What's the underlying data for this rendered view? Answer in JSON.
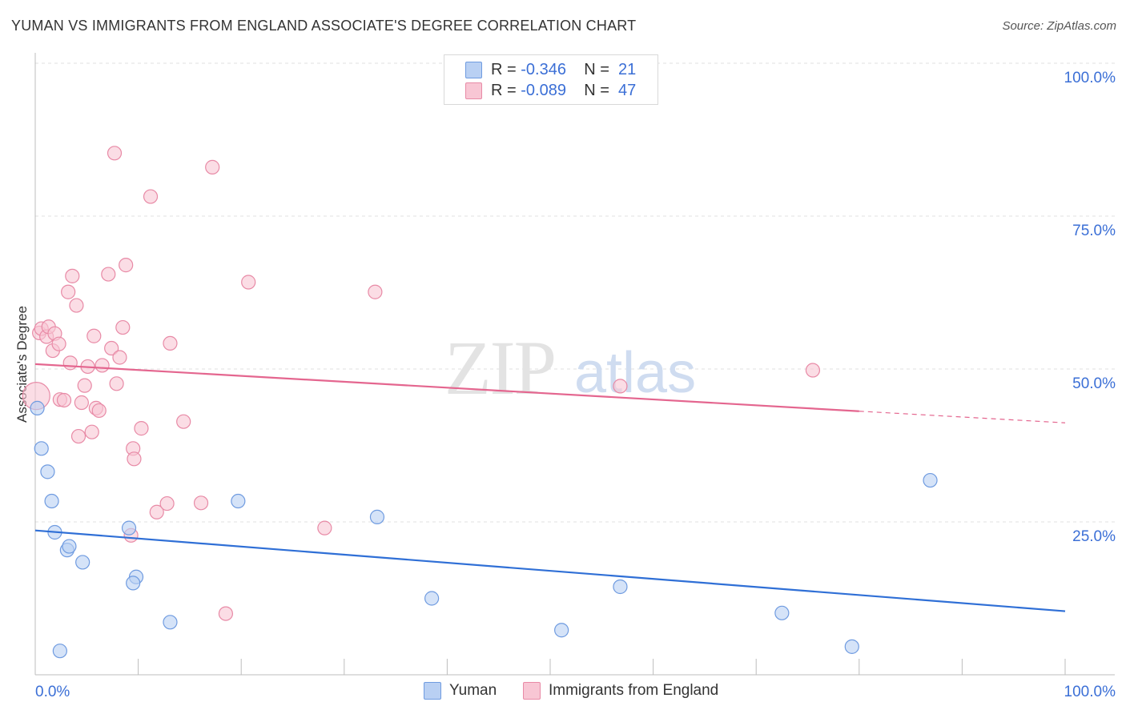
{
  "header": {
    "title": "YUMAN VS IMMIGRANTS FROM ENGLAND ASSOCIATE'S DEGREE CORRELATION CHART",
    "source": "Source: ZipAtlas.com"
  },
  "legend_top": {
    "rows": [
      {
        "r_label": "R = ",
        "r_value": "-0.346",
        "n_label": "N = ",
        "n_value": "21"
      },
      {
        "r_label": "R = ",
        "r_value": "-0.089",
        "n_label": "N = ",
        "n_value": "47"
      }
    ]
  },
  "legend_bottom": {
    "items": [
      {
        "label": "Yuman"
      },
      {
        "label": "Immigrants from England"
      }
    ]
  },
  "colors": {
    "yuman_fill": "#b9d0f3",
    "yuman_stroke": "#6f9be0",
    "yuman_line": "#2f6fd6",
    "england_fill": "#f8c6d4",
    "england_stroke": "#e88aa6",
    "england_line": "#e4668f",
    "tick_text": "#3b6fd6",
    "grid": "#e0e0e0"
  },
  "chart_data": {
    "type": "scatter",
    "title": "YUMAN VS IMMIGRANTS FROM ENGLAND ASSOCIATE'S DEGREE CORRELATION CHART",
    "xlabel": "",
    "ylabel": "Associate's Degree",
    "xlim": [
      0,
      100
    ],
    "ylim": [
      0,
      100
    ],
    "x_tick_labels": [
      "0.0%",
      "100.0%"
    ],
    "y_tick_labels": [
      "100.0%",
      "75.0%",
      "50.0%",
      "25.0%"
    ],
    "y_ticks": [
      100,
      75,
      50,
      25
    ],
    "grid": true,
    "legend": "bottom",
    "watermark": "ZIPatlas",
    "series": [
      {
        "name": "Yuman",
        "r": -0.346,
        "n": 21,
        "trend": {
          "x0": 0,
          "y0": 23.6,
          "x1": 100,
          "y1": 10.4
        },
        "points": [
          [
            0.2,
            43.6
          ],
          [
            0.6,
            37.0
          ],
          [
            1.2,
            33.2
          ],
          [
            1.6,
            28.4
          ],
          [
            1.9,
            23.3
          ],
          [
            3.1,
            20.4
          ],
          [
            3.3,
            21.0
          ],
          [
            4.6,
            18.4
          ],
          [
            9.1,
            24.0
          ],
          [
            9.8,
            16.0
          ],
          [
            9.5,
            15.0
          ],
          [
            13.1,
            8.6
          ],
          [
            19.7,
            28.4
          ],
          [
            33.2,
            25.8
          ],
          [
            38.5,
            12.5
          ],
          [
            51.1,
            7.3
          ],
          [
            56.8,
            14.4
          ],
          [
            72.5,
            10.1
          ],
          [
            79.3,
            4.6
          ],
          [
            86.9,
            31.8
          ],
          [
            2.4,
            3.9
          ]
        ]
      },
      {
        "name": "Immigrants from England",
        "r": -0.089,
        "n": 47,
        "trend": {
          "x0": 0,
          "y0": 50.8,
          "x1": 80,
          "y1": 43.1,
          "dashed_to": 100,
          "dashed_y": 41.2
        },
        "points": [
          [
            0.1,
            45.6
          ],
          [
            0.4,
            55.9
          ],
          [
            0.6,
            56.6
          ],
          [
            1.1,
            55.3
          ],
          [
            1.3,
            56.9
          ],
          [
            1.7,
            53.0
          ],
          [
            1.9,
            55.8
          ],
          [
            2.3,
            54.1
          ],
          [
            2.4,
            45.0
          ],
          [
            2.8,
            44.9
          ],
          [
            3.2,
            62.6
          ],
          [
            3.4,
            51.0
          ],
          [
            3.6,
            65.2
          ],
          [
            4.0,
            60.4
          ],
          [
            4.2,
            39.0
          ],
          [
            4.5,
            44.5
          ],
          [
            4.8,
            47.3
          ],
          [
            5.1,
            50.4
          ],
          [
            5.5,
            39.7
          ],
          [
            5.7,
            55.4
          ],
          [
            5.9,
            43.6
          ],
          [
            6.2,
            43.2
          ],
          [
            6.5,
            50.6
          ],
          [
            7.1,
            65.5
          ],
          [
            7.4,
            53.4
          ],
          [
            7.7,
            85.3
          ],
          [
            7.9,
            47.6
          ],
          [
            8.2,
            51.9
          ],
          [
            8.5,
            56.8
          ],
          [
            8.8,
            67.0
          ],
          [
            9.3,
            22.8
          ],
          [
            9.5,
            37.0
          ],
          [
            9.6,
            35.3
          ],
          [
            10.3,
            40.3
          ],
          [
            11.2,
            78.2
          ],
          [
            11.8,
            26.6
          ],
          [
            12.8,
            28.0
          ],
          [
            13.1,
            54.2
          ],
          [
            14.4,
            41.4
          ],
          [
            16.1,
            28.1
          ],
          [
            17.2,
            83.0
          ],
          [
            18.5,
            10.0
          ],
          [
            20.7,
            64.2
          ],
          [
            28.1,
            24.0
          ],
          [
            33.0,
            62.6
          ],
          [
            56.8,
            47.2
          ],
          [
            75.5,
            49.8
          ]
        ]
      }
    ]
  }
}
